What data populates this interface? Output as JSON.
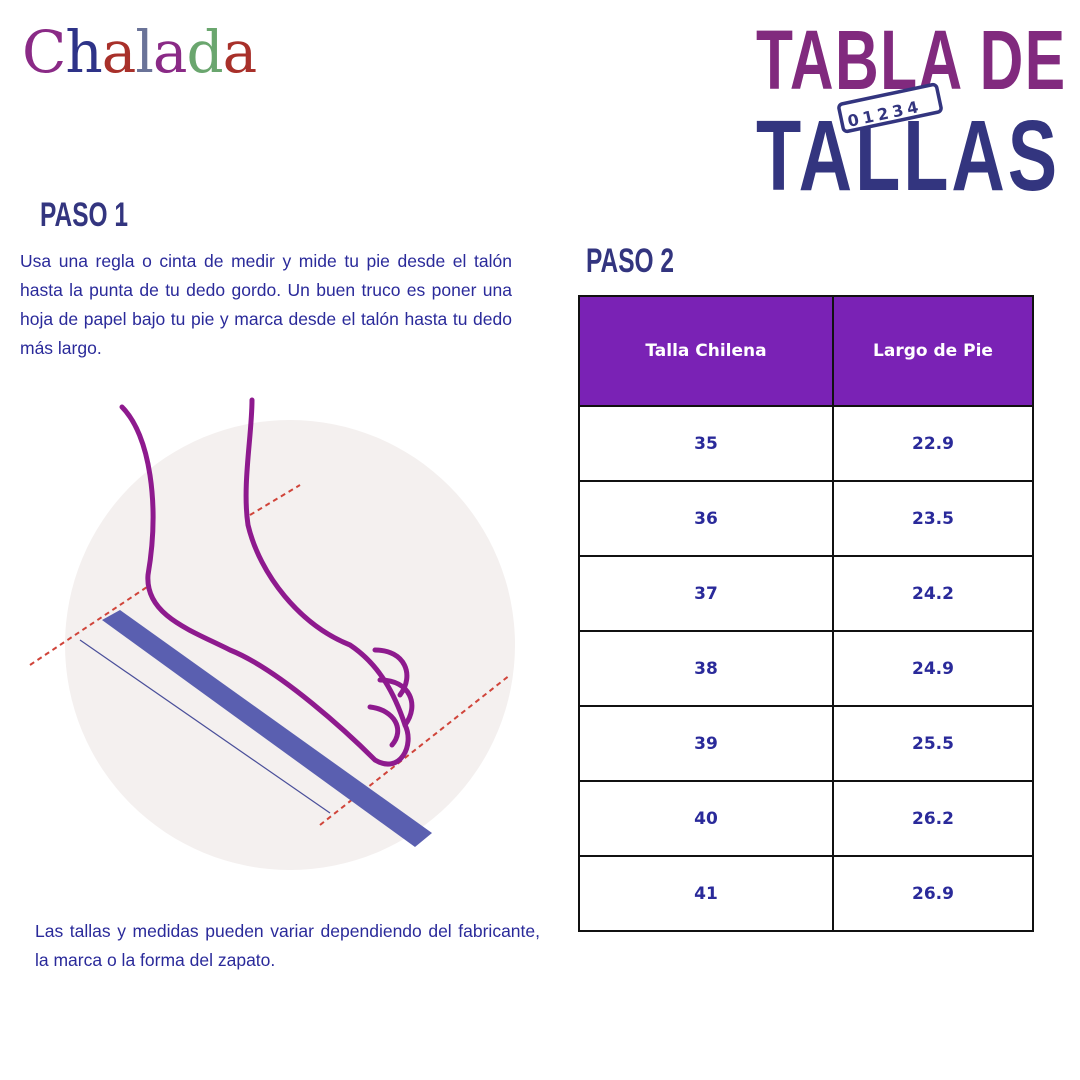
{
  "brand": {
    "logo_text": "Chalada"
  },
  "title": {
    "line1": "TABLA DE",
    "line2": "TALLAS",
    "ruler_digits": "01234"
  },
  "step1": {
    "heading": "PASO 1",
    "text": "Usa una regla o cinta de medir y mide tu pie desde el talón hasta la punta de tu dedo gordo. Un buen truco es poner una hoja de papel bajo tu pie y marca desde el talón hasta tu dedo más largo."
  },
  "step2": {
    "heading": "PASO 2"
  },
  "table": {
    "headers": [
      "Talla Chilena",
      "Largo de Pie"
    ],
    "rows": [
      [
        "35",
        "22.9"
      ],
      [
        "36",
        "23.5"
      ],
      [
        "37",
        "24.2"
      ],
      [
        "38",
        "24.9"
      ],
      [
        "39",
        "25.5"
      ],
      [
        "40",
        "26.2"
      ],
      [
        "41",
        "26.9"
      ]
    ]
  },
  "note": "Las tallas y medidas pueden variar dependiendo del fabricante, la marca o la forma del zapato.",
  "colors": {
    "purple": "#812a7e",
    "navy": "#33357f",
    "table_header": "#7a22b5",
    "text": "#2a2a9a",
    "foot": "#8e1a8e",
    "ruler": "#5a5fb0"
  }
}
